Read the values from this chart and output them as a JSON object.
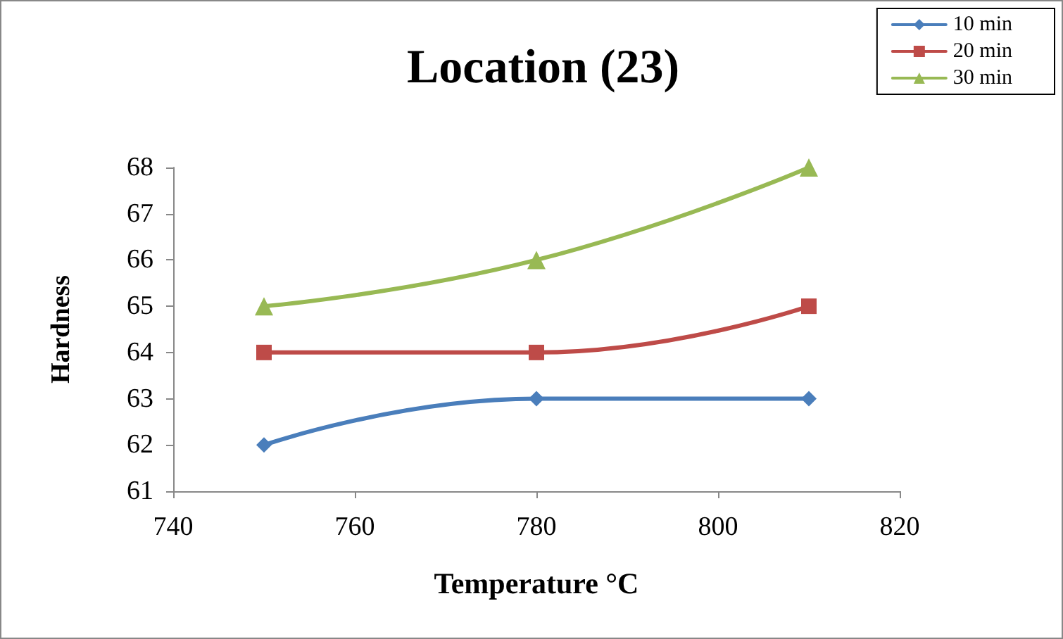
{
  "chart_data": {
    "type": "line",
    "title": "Location (23)",
    "xlabel": "Temperature °C",
    "ylabel": "Hardness",
    "x": [
      750,
      780,
      810
    ],
    "series": [
      {
        "name": "10 min",
        "color": "#4a7ebb",
        "values": [
          62,
          63,
          63
        ],
        "marker": "diamond"
      },
      {
        "name": "20 min",
        "color": "#be4b48",
        "values": [
          64,
          64,
          65
        ],
        "marker": "square"
      },
      {
        "name": "30 min",
        "color": "#98b954",
        "values": [
          65,
          66,
          68
        ],
        "marker": "triangle"
      }
    ],
    "xlim": [
      740,
      820
    ],
    "xticks": [
      740,
      760,
      780,
      800,
      820
    ],
    "ylim": [
      61,
      68
    ],
    "yticks": [
      61,
      62,
      63,
      64,
      65,
      66,
      67,
      68
    ],
    "grid": false,
    "legend": "top right",
    "line_style": "solid"
  }
}
